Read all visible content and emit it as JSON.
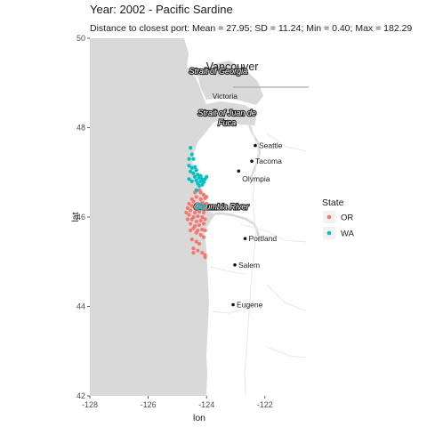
{
  "title": "Year: 2002 - Pacific Sardine",
  "subtitle": "Distance to closest port: Mean = 27.95; SD = 11.24; Min = 0.40; Max = 182.29",
  "axes": {
    "xlabel": "lon",
    "ylabel": "lat",
    "xlim": [
      -128,
      -120.5
    ],
    "ylim": [
      42,
      50
    ],
    "xticks": [
      -128,
      -126,
      -124,
      -122
    ],
    "yticks": [
      42,
      44,
      46,
      48,
      50
    ],
    "xtick_labels": [
      "-128",
      "-126",
      "-124",
      "-122"
    ],
    "ytick_labels": [
      "42",
      "44",
      "46",
      "48",
      "50"
    ]
  },
  "legend": {
    "title": "State",
    "items": [
      {
        "label": "OR",
        "color": "#F8766D"
      },
      {
        "label": "WA",
        "color": "#00BFC4"
      }
    ]
  },
  "map": {
    "land_color": "#FFFFFF",
    "water_color": "#D9D9D9",
    "cities": [
      {
        "name": "Seattle",
        "lon": -122.33,
        "lat": 47.6,
        "dot": true,
        "big": false
      },
      {
        "name": "Tacoma",
        "lon": -122.45,
        "lat": 47.25,
        "dot": true,
        "big": false
      },
      {
        "name": "Olympia",
        "lon": -122.9,
        "lat": 47.03,
        "dot": true,
        "big": false,
        "label_below": true
      },
      {
        "name": "Portland",
        "lon": -122.68,
        "lat": 45.52,
        "dot": true,
        "big": false
      },
      {
        "name": "Salem",
        "lon": -123.03,
        "lat": 44.93,
        "dot": true,
        "big": false
      },
      {
        "name": "Eugene",
        "lon": -123.09,
        "lat": 44.04,
        "dot": true,
        "big": false
      },
      {
        "name": "Vancouver",
        "lon": -123.12,
        "lat": 49.28,
        "dot": false,
        "big": true
      },
      {
        "name": "Victoria",
        "lon": -123.37,
        "lat": 48.65,
        "dot": false,
        "big": false
      }
    ],
    "water_labels": [
      {
        "lines": [
          "Strait of Georgia"
        ],
        "lon": -123.6,
        "lat": 49.2
      },
      {
        "lines": [
          "Strait of Juan de",
          "Fuca"
        ],
        "lon": -123.3,
        "lat": 48.27
      },
      {
        "lines": [
          "Columbia River"
        ],
        "lon": -123.5,
        "lat": 46.17
      }
    ]
  },
  "chart_data": {
    "type": "scatter",
    "title": "Year: 2002 - Pacific Sardine",
    "subtitle": "Distance to closest port: Mean = 27.95; SD = 11.24; Min = 0.40; Max = 182.29",
    "xlabel": "lon",
    "ylabel": "lat",
    "xlim": [
      -128,
      -120.5
    ],
    "ylim": [
      42,
      50
    ],
    "legend_title": "State",
    "legend_position": "right",
    "grid": false,
    "series": [
      {
        "name": "OR",
        "color": "#F8766D",
        "points": [
          [
            -124.4,
            46.55
          ],
          [
            -124.25,
            46.6
          ],
          [
            -124.1,
            46.5
          ],
          [
            -124.35,
            46.45
          ],
          [
            -124.2,
            46.4
          ],
          [
            -124.05,
            46.42
          ],
          [
            -124.45,
            46.35
          ],
          [
            -124.3,
            46.3
          ],
          [
            -124.15,
            46.32
          ],
          [
            -124.0,
            46.3
          ],
          [
            -124.5,
            46.25
          ],
          [
            -124.35,
            46.2
          ],
          [
            -124.2,
            46.22
          ],
          [
            -124.05,
            46.2
          ],
          [
            -124.55,
            46.15
          ],
          [
            -124.4,
            46.1
          ],
          [
            -124.25,
            46.12
          ],
          [
            -124.1,
            46.1
          ],
          [
            -124.6,
            46.05
          ],
          [
            -124.45,
            46.0
          ],
          [
            -124.3,
            46.02
          ],
          [
            -124.15,
            46.0
          ],
          [
            -124.5,
            45.95
          ],
          [
            -124.35,
            45.9
          ],
          [
            -124.2,
            45.92
          ],
          [
            -124.05,
            45.95
          ],
          [
            -124.55,
            45.85
          ],
          [
            -124.4,
            45.8
          ],
          [
            -124.25,
            45.82
          ],
          [
            -124.1,
            45.85
          ],
          [
            -124.45,
            45.75
          ],
          [
            -124.3,
            45.7
          ],
          [
            -124.15,
            45.72
          ],
          [
            -124.35,
            45.65
          ],
          [
            -124.2,
            45.6
          ],
          [
            -124.05,
            45.7
          ],
          [
            -124.5,
            45.5
          ],
          [
            -124.35,
            45.45
          ],
          [
            -124.25,
            45.4
          ],
          [
            -124.1,
            45.55
          ],
          [
            -124.45,
            45.3
          ],
          [
            -124.3,
            45.25
          ],
          [
            -124.15,
            45.2
          ],
          [
            -124.05,
            45.15
          ],
          [
            -124.7,
            46.1
          ],
          [
            -124.65,
            45.95
          ],
          [
            -124.6,
            46.3
          ],
          [
            -124.05,
            45.1
          ],
          [
            -124.45,
            45.2
          ],
          [
            -124.2,
            46.55
          ],
          [
            -124.0,
            46.45
          ],
          [
            -124.5,
            46.4
          ],
          [
            -124.65,
            46.2
          ],
          [
            -124.55,
            45.7
          ]
        ]
      },
      {
        "name": "WA",
        "color": "#00BFC4",
        "points": [
          [
            -124.55,
            47.55
          ],
          [
            -124.5,
            47.4
          ],
          [
            -124.45,
            47.3
          ],
          [
            -124.6,
            47.15
          ],
          [
            -124.5,
            47.1
          ],
          [
            -124.4,
            47.12
          ],
          [
            -124.35,
            47.05
          ],
          [
            -124.55,
            47.02
          ],
          [
            -124.45,
            46.98
          ],
          [
            -124.3,
            46.95
          ],
          [
            -124.2,
            46.92
          ],
          [
            -124.4,
            46.9
          ],
          [
            -124.25,
            46.88
          ],
          [
            -124.15,
            46.85
          ],
          [
            -124.35,
            46.82
          ],
          [
            -124.2,
            46.8
          ],
          [
            -124.1,
            46.78
          ],
          [
            -124.05,
            46.85
          ],
          [
            -124.6,
            46.85
          ],
          [
            -124.5,
            46.8
          ],
          [
            -124.3,
            46.75
          ],
          [
            -124.25,
            46.7
          ],
          [
            -124.15,
            46.72
          ],
          [
            -124.0,
            46.9
          ],
          [
            -124.3,
            46.2
          ],
          [
            -124.15,
            46.18
          ],
          [
            -124.25,
            46.28
          ],
          [
            -124.1,
            46.25
          ],
          [
            -124.6,
            47.3
          ],
          [
            -124.35,
            46.6
          ]
        ]
      }
    ]
  }
}
